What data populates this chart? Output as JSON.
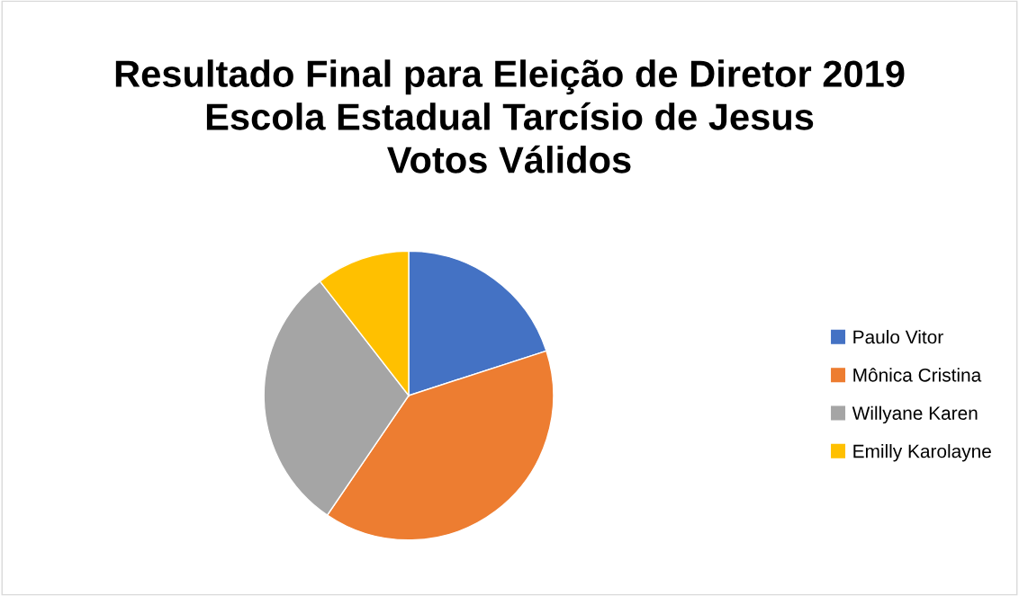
{
  "chart_data": {
    "type": "pie",
    "title": "Resultado Final para Eleição de Diretor 2019\nEscola Estadual Tarcísio de Jesus\nVotos Válidos",
    "categories": [
      "Paulo Vitor",
      "Mônica Cristina",
      "Willyane Karen",
      "Emilly Karolayne"
    ],
    "values": [
      20,
      39.5,
      30,
      10.5
    ],
    "colors": [
      "#4472c4",
      "#ed7d31",
      "#a5a5a5",
      "#ffc000"
    ],
    "legend": "right"
  }
}
